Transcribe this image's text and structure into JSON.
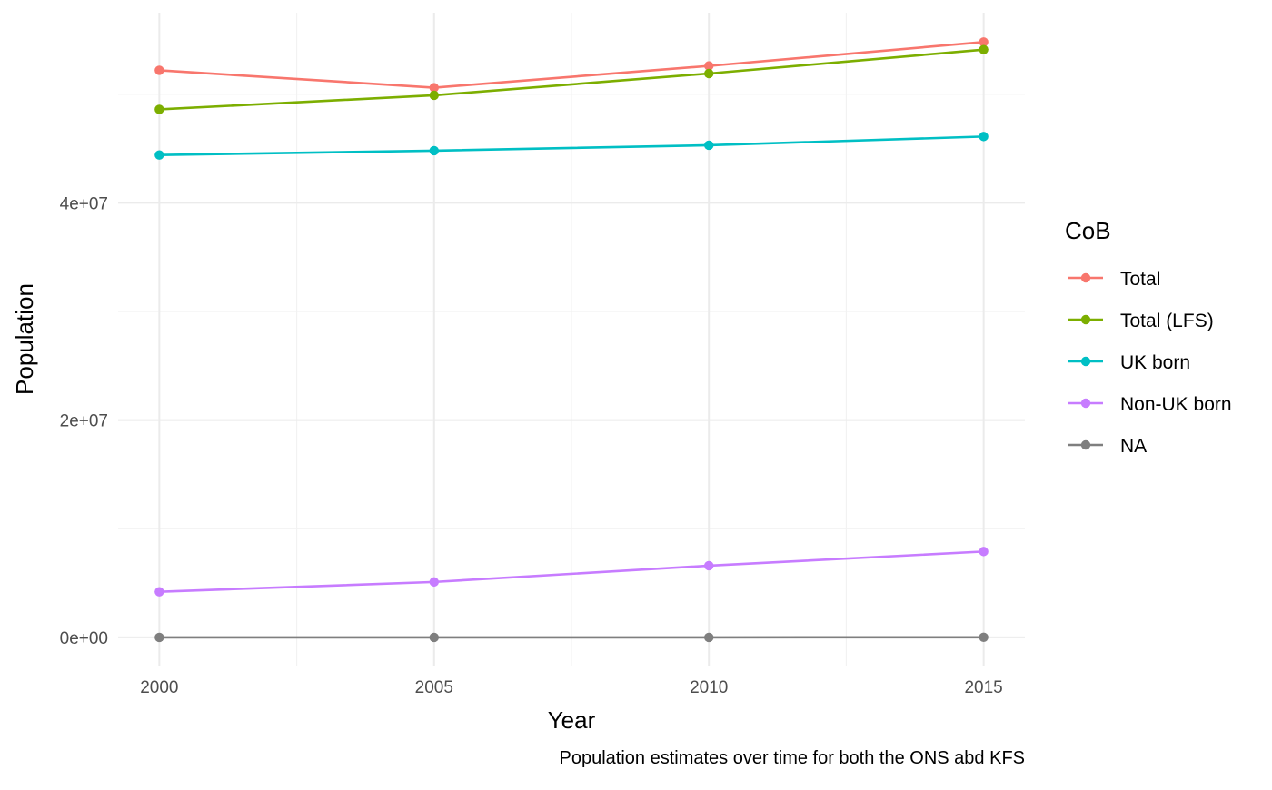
{
  "chart_data": {
    "type": "line",
    "caption": "Population estimates over time for both the ONS abd KFS",
    "xlabel": "Year",
    "ylabel": "Population",
    "xlim": [
      1999.25,
      2015.75
    ],
    "ylim": [
      -2600000,
      57500000
    ],
    "x_ticks": [
      2000,
      2005,
      2010,
      2015
    ],
    "x_tick_labels": [
      "2000",
      "2005",
      "2010",
      "2015"
    ],
    "x_minor_ticks": [
      2002.5,
      2007.5,
      2012.5
    ],
    "y_ticks": [
      0,
      20000000,
      40000000
    ],
    "y_tick_labels": [
      "0e+00",
      "2e+07",
      "4e+07"
    ],
    "y_minor_ticks": [
      10000000,
      30000000,
      50000000
    ],
    "grid": true,
    "legend": {
      "title": "CoB",
      "position": "right"
    },
    "x": [
      2000,
      2005,
      2010,
      2015
    ],
    "series": [
      {
        "name": "Total",
        "color": "#F8766D",
        "values": [
          52200000,
          50600000,
          52600000,
          54800000
        ]
      },
      {
        "name": "Total (LFS)",
        "color": "#7CAE00",
        "values": [
          48600000,
          49900000,
          51900000,
          54100000
        ]
      },
      {
        "name": "UK born",
        "color": "#00BFC4",
        "values": [
          44400000,
          44800000,
          45300000,
          46100000
        ]
      },
      {
        "name": "Non-UK born",
        "color": "#C77CFF",
        "values": [
          4200000,
          5100000,
          6600000,
          7900000
        ]
      },
      {
        "name": "NA",
        "color": "#7F7F7F",
        "values": [
          0,
          0,
          0,
          10000
        ]
      }
    ]
  }
}
